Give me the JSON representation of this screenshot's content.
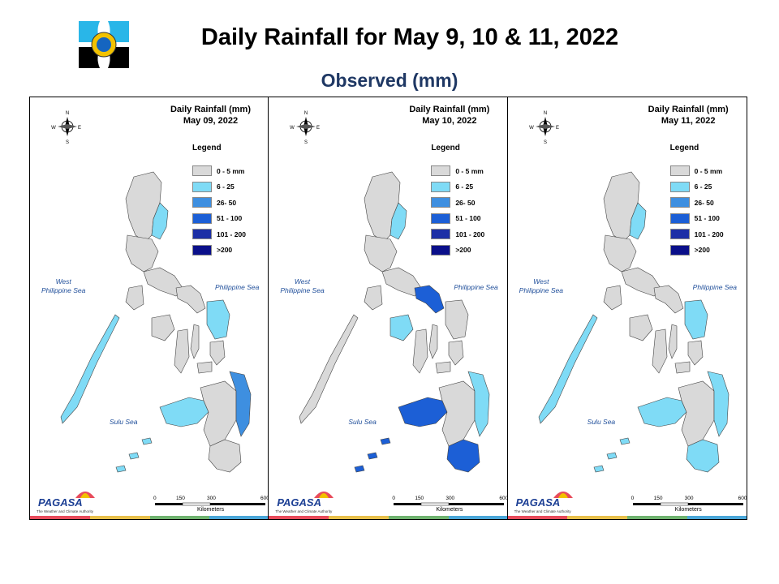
{
  "header": {
    "title": "Daily Rainfall for May 9, 10 & 11, 2022",
    "subtitle": "Observed (mm)"
  },
  "legend": {
    "heading": "Legend",
    "items": [
      {
        "label": "0 - 5 mm",
        "color": "#d9d9d9"
      },
      {
        "label": "6 - 25",
        "color": "#7fdbf6"
      },
      {
        "label": "26- 50",
        "color": "#3e8fe0"
      },
      {
        "label": "51 - 100",
        "color": "#1c5fd6"
      },
      {
        "label": "101 - 200",
        "color": "#1c2fa6"
      },
      {
        "label": ">200",
        "color": "#0a0f8a"
      }
    ]
  },
  "labels": {
    "west_sea": "West\nPhilippine Sea",
    "phil_sea": "Philippine Sea",
    "sulu_sea": "Sulu Sea",
    "scale": [
      "0",
      "150",
      "300",
      "600"
    ],
    "km": "Kilometers",
    "compass": [
      "N",
      "S",
      "E",
      "W"
    ],
    "brand": "PAGASA",
    "brand_tag": "The Weather and Climate Authority"
  },
  "panels": [
    {
      "title": "Daily Rainfall (mm)",
      "date": "May 09, 2022",
      "rain": {
        "cagayan": "#7fdbf6",
        "bicol": "#d9d9d9",
        "samar": "#7fdbf6",
        "palawan": "#7fdbf6",
        "mindanao_w": "#7fdbf6",
        "mindanao_e": "#3e8fe0",
        "mindanao_s": "#d9d9d9",
        "sulu": "#7fdbf6",
        "panay": "#d9d9d9"
      }
    },
    {
      "title": "Daily Rainfall (mm)",
      "date": "May 10, 2022",
      "rain": {
        "cagayan": "#7fdbf6",
        "bicol": "#1c5fd6",
        "samar": "#d9d9d9",
        "palawan": "#d9d9d9",
        "mindanao_w": "#1c5fd6",
        "mindanao_e": "#7fdbf6",
        "mindanao_s": "#1c5fd6",
        "sulu": "#1c5fd6",
        "panay": "#7fdbf6"
      }
    },
    {
      "title": "Daily Rainfall (mm)",
      "date": "May 11, 2022",
      "rain": {
        "cagayan": "#7fdbf6",
        "bicol": "#d9d9d9",
        "samar": "#7fdbf6",
        "palawan": "#7fdbf6",
        "mindanao_w": "#7fdbf6",
        "mindanao_e": "#7fdbf6",
        "mindanao_s": "#7fdbf6",
        "sulu": "#7fdbf6",
        "panay": "#d9d9d9"
      }
    }
  ],
  "strip_colors": [
    "#e84b5b",
    "#e8c04b",
    "#6fb36f",
    "#4aa6d8"
  ]
}
